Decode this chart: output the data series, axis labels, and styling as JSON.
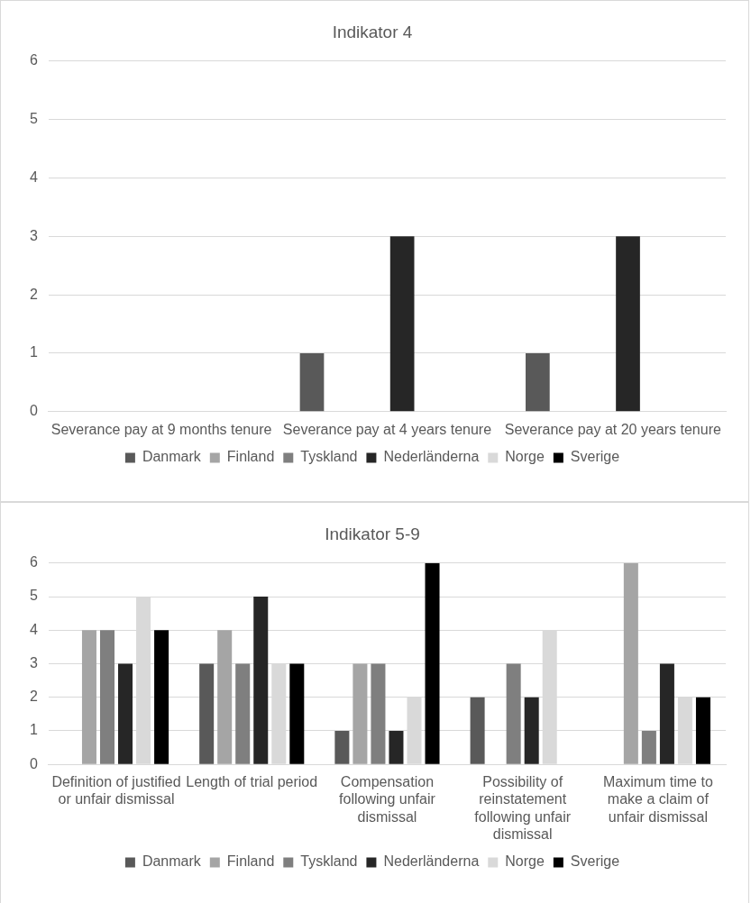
{
  "chart_data": [
    {
      "type": "bar",
      "title": "Indikator 4",
      "categories": [
        "Severance pay at 9 months tenure",
        "Severance pay at 4 years tenure",
        "Severance pay at 20 years tenure"
      ],
      "series": [
        {
          "name": "Danmark",
          "color": "#595959",
          "values": [
            0,
            1,
            1
          ]
        },
        {
          "name": "Finland",
          "color": "#a5a5a5",
          "values": [
            0,
            0,
            0
          ]
        },
        {
          "name": "Tyskland",
          "color": "#7f7f7f",
          "values": [
            0,
            0,
            0
          ]
        },
        {
          "name": "Nederländerna",
          "color": "#262626",
          "values": [
            0,
            3,
            3
          ]
        },
        {
          "name": "Norge",
          "color": "#d9d9d9",
          "values": [
            0,
            0,
            0
          ]
        },
        {
          "name": "Sverige",
          "color": "#000000",
          "values": [
            0,
            0,
            0
          ]
        }
      ],
      "ylim": [
        0,
        6
      ],
      "yticks": [
        0,
        1,
        2,
        3,
        4,
        5,
        6
      ],
      "grid": "y",
      "legend": "bottom"
    },
    {
      "type": "bar",
      "title": "Indikator 5-9",
      "categories": [
        "Definition of justified or unfair dismissal",
        "Length of trial period",
        "Compensation following unfair dismissal",
        "Possibility of reinstatement following unfair dismissal",
        "Maximum time to make a claim of unfair dismissal"
      ],
      "series": [
        {
          "name": "Danmark",
          "color": "#595959",
          "values": [
            0,
            3,
            1,
            2,
            0
          ]
        },
        {
          "name": "Finland",
          "color": "#a5a5a5",
          "values": [
            4,
            4,
            3,
            0,
            6
          ]
        },
        {
          "name": "Tyskland",
          "color": "#7f7f7f",
          "values": [
            4,
            3,
            3,
            3,
            1
          ]
        },
        {
          "name": "Nederländerna",
          "color": "#262626",
          "values": [
            3,
            5,
            1,
            2,
            3
          ]
        },
        {
          "name": "Norge",
          "color": "#d9d9d9",
          "values": [
            5,
            3,
            2,
            4,
            2
          ]
        },
        {
          "name": "Sverige",
          "color": "#000000",
          "values": [
            4,
            3,
            6,
            0,
            2
          ]
        }
      ],
      "ylim": [
        0,
        6
      ],
      "yticks": [
        0,
        1,
        2,
        3,
        4,
        5,
        6
      ],
      "grid": "y",
      "legend": "bottom"
    }
  ]
}
